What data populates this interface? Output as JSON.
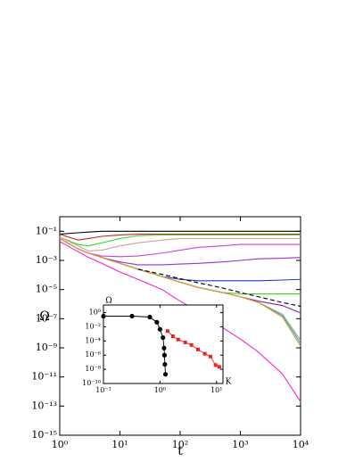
{
  "chart_data": [
    {
      "type": "line",
      "xlabel": "t",
      "ylabel": "Ω",
      "xscale": "log",
      "yscale": "log",
      "xlim": [
        1,
        10000
      ],
      "ylim": [
        1e-15,
        1
      ],
      "xticks": [
        {
          "value": 1,
          "label": "10⁰"
        },
        {
          "value": 10,
          "label": "10¹"
        },
        {
          "value": 100,
          "label": "10²"
        },
        {
          "value": 1000,
          "label": "10³"
        },
        {
          "value": 10000,
          "label": "10⁴"
        }
      ],
      "yticks": [
        {
          "value": 0.1,
          "label": "10⁻¹"
        },
        {
          "value": 0.001,
          "label": "10⁻³"
        },
        {
          "value": 1e-05,
          "label": "10⁻⁵"
        },
        {
          "value": 1e-07,
          "label": "10⁻⁷"
        },
        {
          "value": 1e-09,
          "label": "10⁻⁹"
        },
        {
          "value": 1e-11,
          "label": "10⁻¹¹"
        },
        {
          "value": 1e-13,
          "label": "10⁻¹³"
        },
        {
          "value": 1e-15,
          "label": "10⁻¹⁵"
        }
      ],
      "x": [
        1,
        2,
        3,
        5,
        10,
        20,
        50,
        100,
        200,
        500,
        1000,
        2000,
        5000,
        10000
      ],
      "series": [
        {
          "color": "#000000",
          "values": [
            0.063,
            0.079,
            0.089,
            0.1,
            0.1,
            0.1,
            0.1,
            0.1,
            0.1,
            0.1,
            0.1,
            0.1,
            0.1,
            0.1
          ]
        },
        {
          "color": "#cc2222",
          "values": [
            0.063,
            0.025,
            0.032,
            0.045,
            0.056,
            0.063,
            0.063,
            0.063,
            0.063,
            0.063,
            0.063,
            0.063,
            0.063,
            0.063
          ]
        },
        {
          "color": "#33dd33",
          "values": [
            0.04,
            0.0126,
            0.01,
            0.016,
            0.032,
            0.05,
            0.056,
            0.056,
            0.056,
            0.056,
            0.056,
            0.056,
            0.056,
            0.056
          ]
        },
        {
          "color": "#d4a0a0",
          "values": [
            0.04,
            0.01,
            0.0045,
            0.005,
            0.01,
            0.016,
            0.025,
            0.032,
            0.032,
            0.032,
            0.032,
            0.032,
            0.032,
            0.032
          ]
        },
        {
          "color": "#cc44dd",
          "values": [
            0.032,
            0.0063,
            0.0032,
            0.002,
            0.0018,
            0.002,
            0.0032,
            0.005,
            0.0079,
            0.01,
            0.0126,
            0.0126,
            0.0126,
            0.0126
          ]
        },
        {
          "color": "#9933cc",
          "values": [
            0.032,
            0.0063,
            0.0032,
            0.0016,
            0.00079,
            0.0005,
            0.0005,
            0.00056,
            0.00063,
            0.00079,
            0.001,
            0.0013,
            0.0014,
            0.0016
          ]
        },
        {
          "color": "#2233dd",
          "values": [
            0.032,
            0.0063,
            0.0032,
            0.0016,
            0.00063,
            0.00025,
            7.9e-05,
            5e-05,
            4e-05,
            4e-05,
            4e-05,
            4e-05,
            4.5e-05,
            5e-05
          ]
        },
        {
          "color": "#44cc22",
          "values": [
            0.032,
            0.0063,
            0.0032,
            0.0016,
            0.00063,
            0.00025,
            7.9e-05,
            3.2e-05,
            1.4e-05,
            6.3e-06,
            5e-06,
            5e-06,
            5e-06,
            5e-06
          ]
        },
        {
          "color": "#8822aa",
          "values": [
            0.032,
            0.0063,
            0.0032,
            0.0016,
            0.00063,
            0.00025,
            7.9e-05,
            3.2e-05,
            1.4e-05,
            6.3e-06,
            3.2e-06,
            1.6e-06,
            7.9e-07,
            2.5e-07
          ]
        },
        {
          "color": "#999999",
          "values": [
            0.032,
            0.0063,
            0.0032,
            0.0016,
            0.00063,
            0.00025,
            7.9e-05,
            3.2e-05,
            1.4e-05,
            6.3e-06,
            3.2e-06,
            1.3e-06,
            2e-07,
            3.2e-09
          ]
        },
        {
          "color": "#22bbcc",
          "values": [
            0.032,
            0.0063,
            0.0032,
            0.0016,
            0.00063,
            0.00025,
            7.9e-05,
            3.2e-05,
            1.4e-05,
            6.3e-06,
            3.2e-06,
            1.3e-06,
            1.6e-07,
            2e-09
          ]
        },
        {
          "color": "#ee9922",
          "values": [
            0.032,
            0.0063,
            0.0032,
            0.0016,
            0.00063,
            0.00025,
            7.9e-05,
            3.2e-05,
            1.4e-05,
            6.3e-06,
            3.2e-06,
            1.3e-06,
            1.3e-07,
            1.3e-09
          ]
        },
        {
          "color": "#ff22cc",
          "values": [
            0.02,
            0.004,
            0.0016,
            0.00063,
            0.00016,
            5e-05,
            1e-05,
            1.6e-06,
            3.2e-07,
            2.5e-08,
            4e-09,
            5e-10,
            1.6e-11,
            2e-13
          ]
        },
        {
          "color": "#000000",
          "dash": true,
          "values": [
            null,
            null,
            null,
            null,
            null,
            0.00025,
            0.00011,
            5.6e-05,
            2.9e-05,
            1.3e-05,
            6.3e-06,
            3.2e-06,
            1.3e-06,
            7e-07
          ]
        }
      ]
    },
    {
      "type": "scatter",
      "xlabel": "K",
      "ylabel": "Ω",
      "xscale": "log",
      "yscale": "log",
      "xlim": [
        0.1,
        13
      ],
      "ylim": [
        1e-10,
        12
      ],
      "xticks": [
        {
          "value": 0.1,
          "label": "10⁻¹"
        },
        {
          "value": 1,
          "label": "10⁰"
        },
        {
          "value": 10,
          "label": "10¹"
        }
      ],
      "yticks": [
        {
          "value": 1,
          "label": "10⁰"
        },
        {
          "value": 0.01,
          "label": "10⁻²"
        },
        {
          "value": 0.0001,
          "label": "10⁻⁴"
        },
        {
          "value": 1e-06,
          "label": "10⁻⁶"
        },
        {
          "value": 1e-08,
          "label": "10⁻⁸"
        },
        {
          "value": 1e-10,
          "label": "10⁻¹⁰"
        }
      ],
      "series": [
        {
          "color": "#000000",
          "marker": "circle",
          "x": [
            0.1,
            0.32,
            0.66,
            0.88,
            1.0,
            1.13,
            1.18,
            1.2,
            1.22,
            1.25
          ],
          "values": [
            0.32,
            0.32,
            0.24,
            0.044,
            0.0045,
            0.0003,
            1e-05,
            1e-06,
            5e-08,
            2e-09
          ]
        },
        {
          "color": "#ee2222",
          "marker": "square",
          "x": [
            1.36,
            1.69,
            2.1,
            2.8,
            3.6,
            4.7,
            6.2,
            7.8,
            9.6,
            11.2
          ],
          "values": [
            0.0025,
            0.00047,
            0.00016,
            6.3e-05,
            2.7e-05,
            6.3e-06,
            1.6e-06,
            6.3e-07,
            4e-08,
            2.2e-08
          ]
        }
      ]
    }
  ]
}
